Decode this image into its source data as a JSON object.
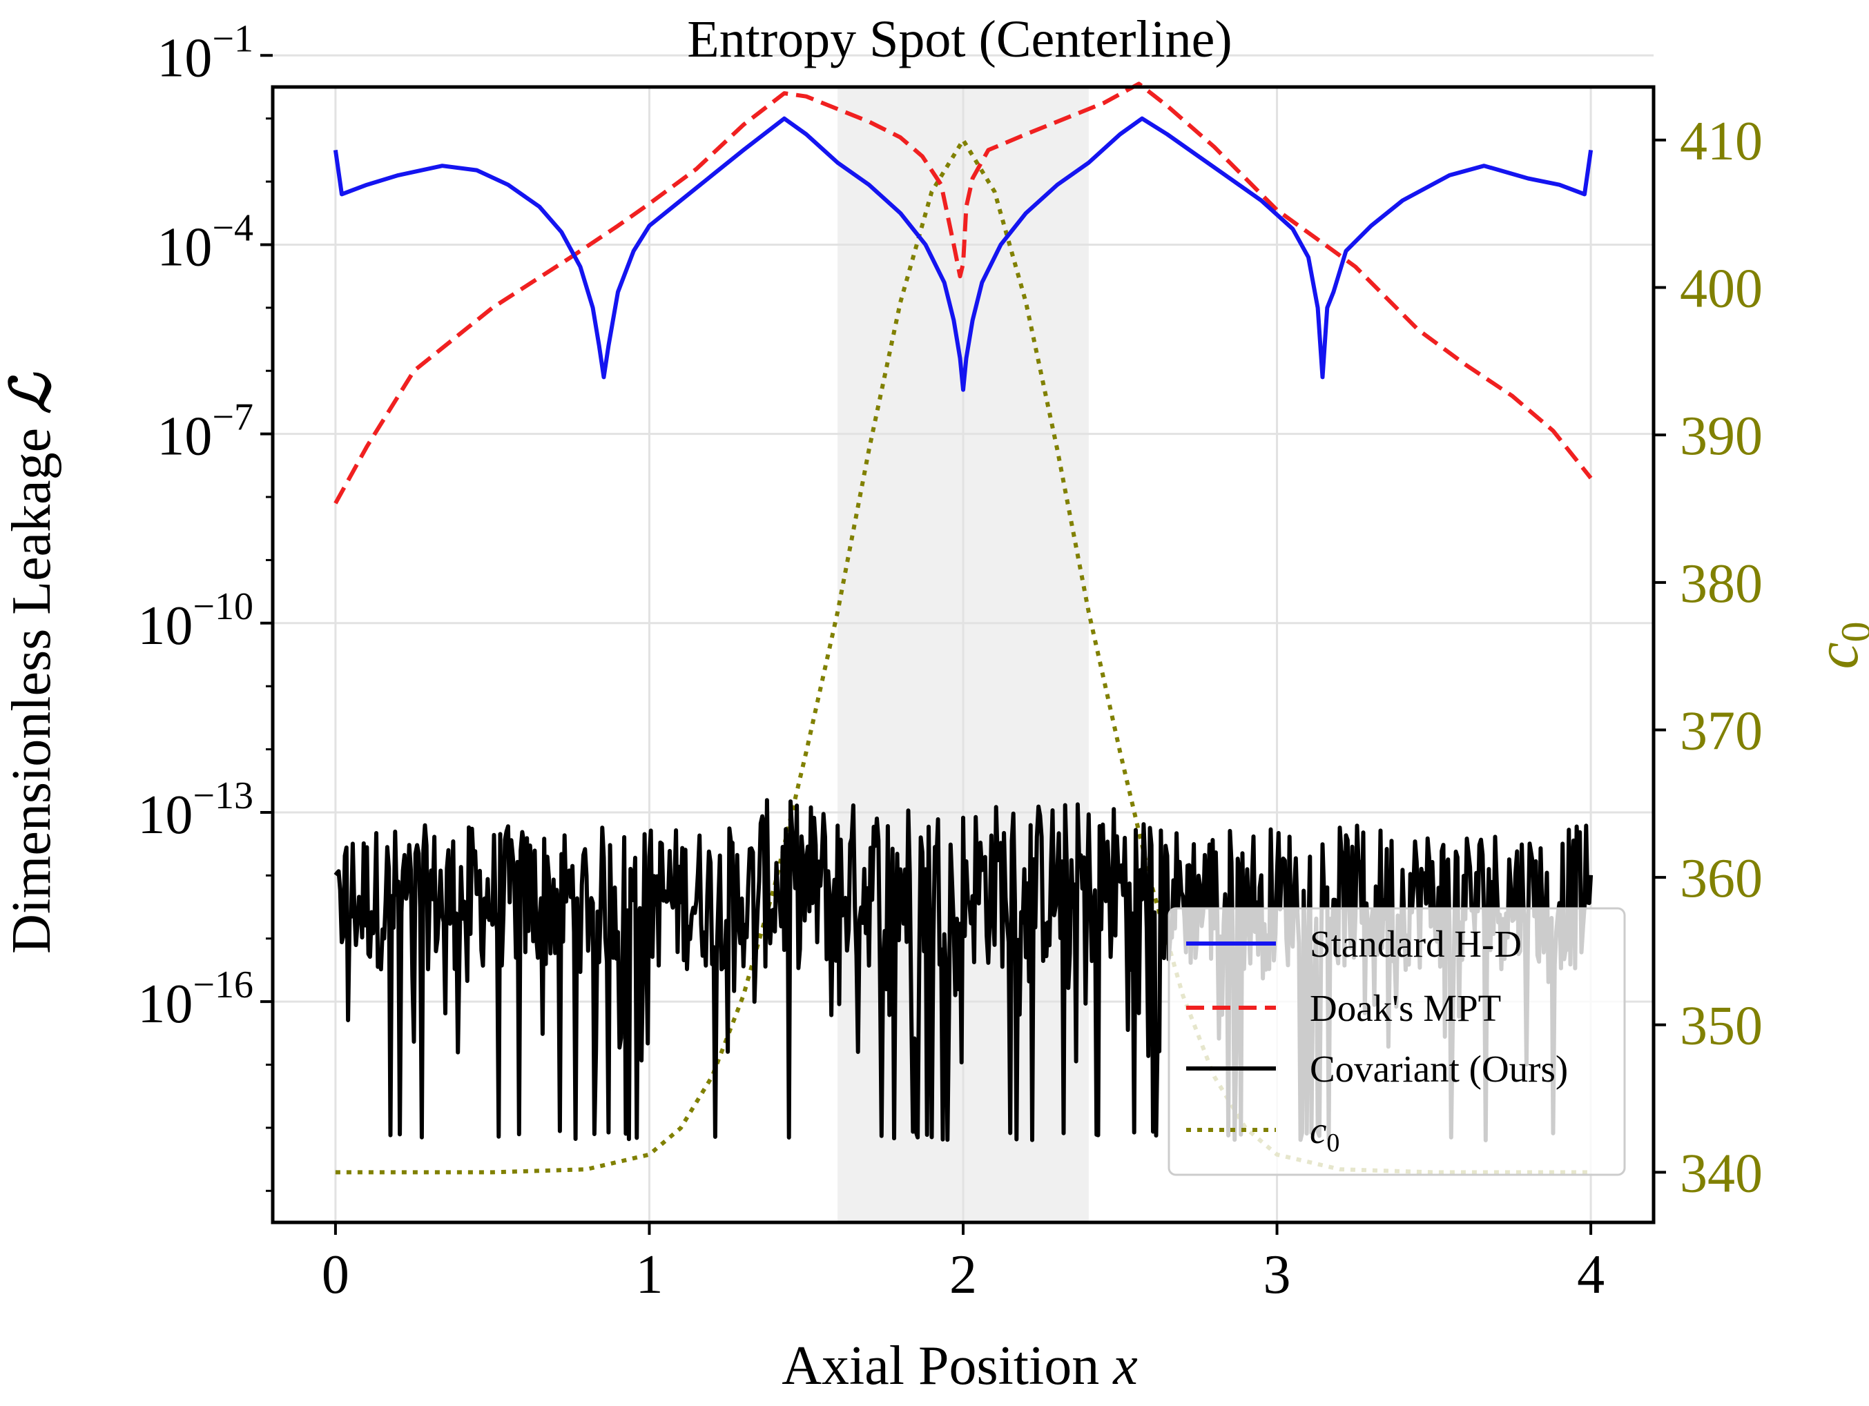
{
  "chart_data": {
    "type": "line",
    "title": "Entropy Spot (Centerline)",
    "xlabel": "Axial Position x",
    "xlabel_text": "Axial Position ",
    "xlabel_var": "x",
    "ylabel": "Dimensionless Leakage ℒ",
    "ylabel_text": "Dimensionless Leakage ",
    "ylabel_var": "ℒ",
    "y2label": "c0",
    "y2label_base": "c",
    "y2label_sub": "0",
    "xlim": [
      -0.2,
      4.2
    ],
    "ylim_log10": [
      -19.5,
      -1.5
    ],
    "y2lim": [
      336.6,
      413.6
    ],
    "grid": true,
    "shaded_region": {
      "x": [
        1.6,
        2.4
      ]
    },
    "x_ticks": [
      {
        "value": 0,
        "label": "0"
      },
      {
        "value": 1,
        "label": "1"
      },
      {
        "value": 2,
        "label": "2"
      },
      {
        "value": 3,
        "label": "3"
      },
      {
        "value": 4,
        "label": "4"
      }
    ],
    "y_ticks": [
      {
        "exp": -1,
        "base": "10",
        "label": "−1"
      },
      {
        "exp": -4,
        "base": "10",
        "label": "−4"
      },
      {
        "exp": -7,
        "base": "10",
        "label": "−7"
      },
      {
        "exp": -10,
        "base": "10",
        "label": "−10"
      },
      {
        "exp": -13,
        "base": "10",
        "label": "−13"
      },
      {
        "exp": -16,
        "base": "10",
        "label": "−16"
      }
    ],
    "y2_ticks": [
      {
        "value": 340,
        "label": "340"
      },
      {
        "value": 350,
        "label": "350"
      },
      {
        "value": 360,
        "label": "360"
      },
      {
        "value": 370,
        "label": "370"
      },
      {
        "value": 380,
        "label": "380"
      },
      {
        "value": 390,
        "label": "390"
      },
      {
        "value": 400,
        "label": "400"
      },
      {
        "value": 410,
        "label": "410"
      }
    ],
    "colors": {
      "standard_hd": "#1414f0",
      "doak_mpt": "#f02020",
      "covariant": "#000000",
      "c0": "#808000",
      "shade": "#f0f0f0",
      "grid": "#e2e2e2"
    },
    "legend": {
      "placement": "lower-right",
      "entries": [
        {
          "label": "Standard H-D",
          "series": "standard_hd"
        },
        {
          "label": "Doak's MPT",
          "series": "doak_mpt"
        },
        {
          "label": "Covariant (Ours)",
          "series": "covariant"
        },
        {
          "label": "c0",
          "label_base": "c",
          "label_sub": "0",
          "series": "c0"
        }
      ]
    },
    "series": [
      {
        "name": "Standard H-D",
        "key": "standard_hd",
        "axis": "left",
        "style": "solid",
        "x": [
          0,
          0.02,
          0.1,
          0.2,
          0.34,
          0.45,
          0.55,
          0.65,
          0.72,
          0.78,
          0.82,
          0.84,
          0.855,
          0.87,
          0.9,
          0.95,
          1.0,
          1.1,
          1.2,
          1.3,
          1.43,
          1.5,
          1.6,
          1.7,
          1.8,
          1.88,
          1.94,
          1.97,
          1.99,
          2.0,
          2.01,
          2.03,
          2.06,
          2.12,
          2.2,
          2.3,
          2.4,
          2.5,
          2.57,
          2.65,
          2.75,
          2.85,
          2.95,
          3.05,
          3.1,
          3.13,
          3.145,
          3.16,
          3.18,
          3.22,
          3.3,
          3.4,
          3.55,
          3.66,
          3.8,
          3.9,
          3.98,
          4.0
        ],
        "log10y": [
          -2.5,
          -3.2,
          -3.05,
          -2.9,
          -2.75,
          -2.82,
          -3.05,
          -3.4,
          -3.8,
          -4.35,
          -5.0,
          -5.6,
          -6.1,
          -5.6,
          -4.75,
          -4.1,
          -3.7,
          -3.3,
          -2.9,
          -2.5,
          -2.0,
          -2.25,
          -2.7,
          -3.05,
          -3.5,
          -4.0,
          -4.6,
          -5.2,
          -5.8,
          -6.3,
          -5.8,
          -5.2,
          -4.6,
          -4.0,
          -3.5,
          -3.05,
          -2.7,
          -2.25,
          -2.0,
          -2.25,
          -2.6,
          -2.95,
          -3.3,
          -3.75,
          -4.2,
          -5.0,
          -6.1,
          -5.0,
          -4.75,
          -4.1,
          -3.7,
          -3.3,
          -2.9,
          -2.75,
          -2.95,
          -3.05,
          -3.2,
          -2.5
        ]
      },
      {
        "name": "Doak's MPT",
        "key": "doak_mpt",
        "axis": "left",
        "style": "dashed",
        "x": [
          0,
          0.1,
          0.25,
          0.5,
          0.75,
          0.9,
          1.0,
          1.15,
          1.3,
          1.43,
          1.5,
          1.6,
          1.7,
          1.8,
          1.87,
          1.93,
          1.97,
          1.99,
          2.0,
          2.01,
          2.03,
          2.08,
          2.2,
          2.35,
          2.45,
          2.56,
          2.65,
          2.8,
          3.0,
          3.25,
          3.45,
          3.6,
          3.75,
          3.88,
          4.0
        ],
        "log10y": [
          -8.1,
          -7.2,
          -6.0,
          -5.0,
          -4.2,
          -3.7,
          -3.35,
          -2.8,
          -2.1,
          -1.6,
          -1.65,
          -1.85,
          -2.05,
          -2.3,
          -2.6,
          -3.05,
          -4.0,
          -4.5,
          -4.3,
          -3.4,
          -2.95,
          -2.5,
          -2.25,
          -1.95,
          -1.75,
          -1.45,
          -1.8,
          -2.45,
          -3.45,
          -4.35,
          -5.35,
          -5.9,
          -6.4,
          -6.95,
          -7.7
        ]
      },
      {
        "name": "Covariant (Ours)",
        "key": "covariant",
        "axis": "left",
        "style": "solid",
        "x_range": [
          0,
          4
        ],
        "samples": 801,
        "baseline_log10y": -14.5,
        "noise_band": [
          -15.5,
          -13.3
        ],
        "floor_log10y": -18.2,
        "note": "machine-precision noise; values rendered as noisy trace between 1e-13 and 1e-16 with dropouts to ~1e-18"
      },
      {
        "name": "c0",
        "key": "c0",
        "axis": "right",
        "style": "dotted",
        "x": [
          0,
          0.5,
          0.8,
          1.0,
          1.1,
          1.2,
          1.3,
          1.4,
          1.5,
          1.6,
          1.7,
          1.8,
          1.9,
          2.0,
          2.1,
          2.2,
          2.3,
          2.4,
          2.5,
          2.6,
          2.7,
          2.8,
          2.9,
          3.0,
          3.2,
          3.5,
          4.0
        ],
        "values": [
          340,
          340,
          340.2,
          341.2,
          343.0,
          346.5,
          352.0,
          359.5,
          368.5,
          378.0,
          389.0,
          399.0,
          406.5,
          410.0,
          406.5,
          399.0,
          389.0,
          378.0,
          368.5,
          359.5,
          352.0,
          346.5,
          343.0,
          341.2,
          340.2,
          340,
          340
        ]
      }
    ]
  }
}
